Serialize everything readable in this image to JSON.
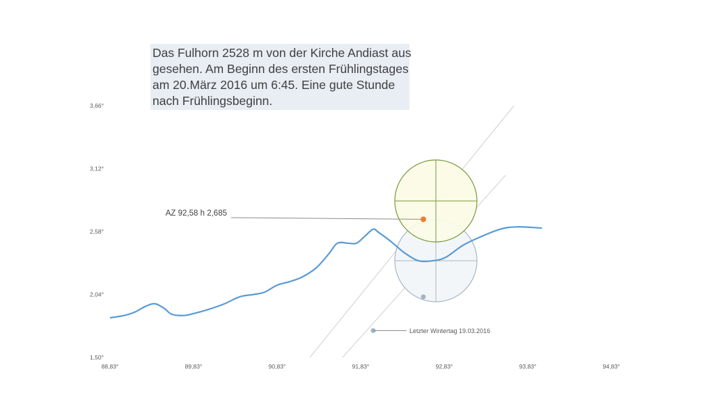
{
  "title_lines": [
    "Das Fulhorn 2528 m von der Kirche Andiast aus",
    "gesehen. Am Beginn des ersten Frühlingstages",
    "am 20.März 2016 um 6:45. Eine gute Stunde",
    "nach Frühlingsbeginn."
  ],
  "chart_data": {
    "type": "line",
    "title": "Das Fulhorn 2528 m von der Kirche Andiast aus gesehen. Am Beginn des ersten Frühlingstages am 20.März 2016 um 6:45. Eine gute Stunde nach Frühlingsbeginn.",
    "xlabel": "",
    "ylabel": "",
    "xlim": [
      88.83,
      94.83
    ],
    "ylim": [
      1.5,
      3.66
    ],
    "x_ticks": [
      "88,83°",
      "89,83°",
      "90,83°",
      "91,83°",
      "92,83°",
      "93,83°",
      "94,83°"
    ],
    "y_ticks": [
      "3,66°",
      "3,12°",
      "2,58°",
      "2,04°",
      "1,50°"
    ],
    "grid": false,
    "colors": {
      "horizon": "#5a9bd5",
      "sun": "#ed7d31",
      "sun_previous": "#a5b4c2",
      "sun_disc_fill": "#fbfbe6",
      "sun_disc_stroke": "#7a9a3f",
      "prev_disc_fill": "#f3f6f9",
      "prev_disc_stroke": "#a8b6c4",
      "path_line": "#d0d0d0"
    },
    "series": [
      {
        "name": "",
        "kind": "horizon-line",
        "points": [
          [
            88.83,
            1.84
          ],
          [
            89.0,
            1.86
          ],
          [
            89.13,
            1.89
          ],
          [
            89.26,
            1.94
          ],
          [
            89.37,
            1.96
          ],
          [
            89.48,
            1.92
          ],
          [
            89.57,
            1.87
          ],
          [
            89.72,
            1.86
          ],
          [
            89.85,
            1.88
          ],
          [
            90.0,
            1.91
          ],
          [
            90.2,
            1.96
          ],
          [
            90.38,
            2.02
          ],
          [
            90.55,
            2.04
          ],
          [
            90.68,
            2.06
          ],
          [
            90.83,
            2.12
          ],
          [
            90.98,
            2.15
          ],
          [
            91.13,
            2.19
          ],
          [
            91.3,
            2.27
          ],
          [
            91.45,
            2.39
          ],
          [
            91.55,
            2.48
          ],
          [
            91.68,
            2.48
          ],
          [
            91.78,
            2.48
          ],
          [
            91.88,
            2.54
          ],
          [
            91.98,
            2.6
          ],
          [
            92.05,
            2.57
          ],
          [
            92.2,
            2.49
          ],
          [
            92.35,
            2.4
          ],
          [
            92.52,
            2.33
          ],
          [
            92.7,
            2.33
          ],
          [
            92.85,
            2.36
          ],
          [
            93.05,
            2.46
          ],
          [
            93.25,
            2.53
          ],
          [
            93.5,
            2.6
          ],
          [
            93.7,
            2.62
          ],
          [
            94.0,
            2.61
          ]
        ]
      }
    ],
    "sun": {
      "x": 92.58,
      "y": 2.685,
      "label": "AZ 92,58 h  2,685"
    },
    "sun_previous": {
      "x": 92.58,
      "y": 2.02,
      "label": "Letzter Wintertag 19.03.2016"
    },
    "previous_label_anchor": {
      "x": 91.98,
      "y": 1.73
    }
  }
}
